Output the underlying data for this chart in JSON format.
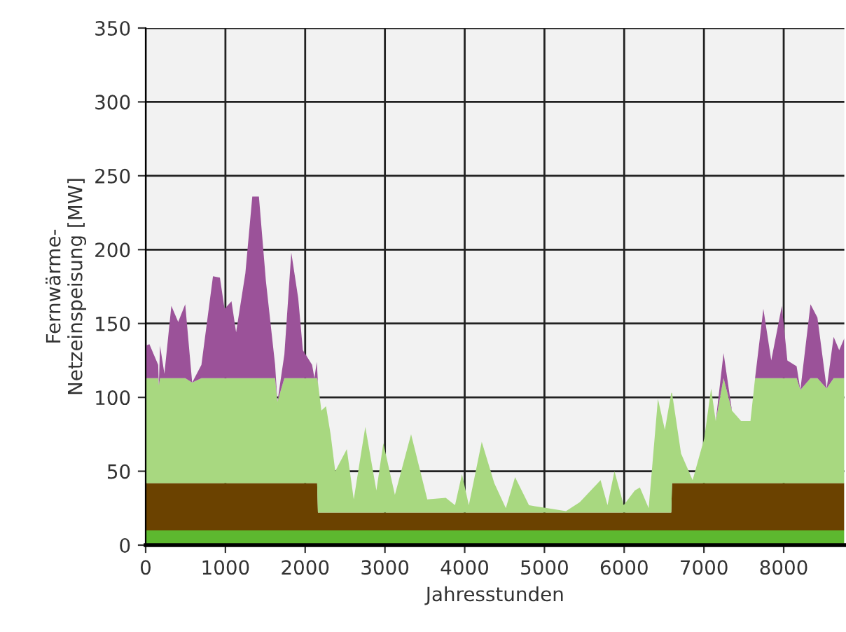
{
  "chart_data": {
    "type": "area",
    "stacked": true,
    "xlabel": "Jahresstunden",
    "ylabel": "Fernwärme-\nNetzeinspeisung [MW]",
    "x": [
      0,
      47,
      157,
      165,
      180,
      235,
      322,
      408,
      496,
      583,
      699,
      844,
      931,
      989,
      1076,
      1134,
      1250,
      1337,
      1420,
      1507,
      1623,
      1652,
      1739,
      1826,
      1913,
      1971,
      2087,
      2116,
      2145,
      2150,
      2160,
      2203,
      2261,
      2319,
      2377,
      2522,
      2609,
      2754,
      2841,
      2893,
      2980,
      3125,
      3328,
      3531,
      3763,
      3879,
      3966,
      4052,
      4214,
      4371,
      4516,
      4632,
      4806,
      5038,
      5270,
      5443,
      5704,
      5791,
      5878,
      5994,
      6133,
      6197,
      6307,
      6423,
      6510,
      6590,
      6600,
      6713,
      6858,
      7003,
      7090,
      7148,
      7246,
      7351,
      7467,
      7583,
      7641,
      7745,
      7844,
      7977,
      8046,
      8162,
      8209,
      8336,
      8423,
      8539,
      8626,
      8696,
      8760
    ],
    "series": [
      {
        "color": "#5db82f",
        "values": [
          10,
          10,
          10,
          10,
          10,
          10,
          10,
          10,
          10,
          10,
          10,
          10,
          10,
          10,
          10,
          10,
          10,
          10,
          10,
          10,
          10,
          10,
          10,
          10,
          10,
          10,
          10,
          10,
          10,
          10,
          10,
          10,
          10,
          10,
          10,
          10,
          10,
          10,
          10,
          10,
          10,
          10,
          10,
          10,
          10,
          10,
          10,
          10,
          10,
          10,
          10,
          10,
          10,
          10,
          10,
          10,
          10,
          10,
          10,
          10,
          10,
          10,
          10,
          10,
          10,
          10,
          10,
          10,
          10,
          10,
          10,
          10,
          10,
          10,
          10,
          10,
          10,
          10,
          10,
          10,
          10,
          10,
          10,
          10,
          10,
          10,
          10,
          10,
          10
        ]
      },
      {
        "color": "#6b4200",
        "values": [
          32,
          32,
          32,
          32,
          32,
          32,
          32,
          32,
          32,
          32,
          32,
          32,
          32,
          32,
          32,
          32,
          32,
          32,
          32,
          32,
          32,
          32,
          32,
          32,
          32,
          32,
          32,
          32,
          32,
          32,
          12,
          12,
          12,
          12,
          12,
          12,
          12,
          12,
          12,
          12,
          12,
          12,
          12,
          12,
          12,
          12,
          12,
          12,
          12,
          12,
          12,
          12,
          12,
          12,
          12,
          12,
          12,
          12,
          12,
          12,
          12,
          12,
          12,
          12,
          12,
          12,
          32,
          32,
          32,
          32,
          32,
          32,
          32,
          32,
          32,
          32,
          32,
          32,
          32,
          32,
          32,
          32,
          32,
          32,
          32,
          32,
          32,
          32,
          32
        ]
      },
      {
        "color": "#a8d880",
        "values": [
          71,
          71,
          71,
          66,
          71,
          71,
          71,
          71,
          71,
          68,
          71,
          71,
          71,
          71,
          71,
          71,
          71,
          71,
          71,
          71,
          71,
          55,
          71,
          71,
          71,
          71,
          71,
          71,
          71,
          71,
          88,
          69,
          72,
          53,
          28,
          43,
          9,
          58,
          31,
          15,
          47,
          12,
          53,
          9,
          10,
          5,
          26,
          5,
          48,
          20,
          3,
          24,
          5,
          3,
          1,
          7,
          22,
          5,
          28,
          5,
          15,
          17,
          3,
          77,
          56,
          81,
          61,
          20,
          2,
          30,
          64,
          42,
          71,
          49,
          42,
          42,
          71,
          71,
          71,
          71,
          71,
          71,
          63,
          71,
          71,
          64,
          71,
          71,
          71
        ]
      },
      {
        "color": "#9b5299",
        "values": [
          22,
          23,
          9,
          0,
          22,
          3,
          49,
          38,
          50,
          0,
          9,
          69,
          68,
          47,
          52,
          31,
          71,
          123,
          123,
          66,
          9,
          0,
          16,
          85,
          54,
          19,
          9,
          0,
          11,
          7,
          0,
          0,
          0,
          0,
          0,
          0,
          0,
          0,
          0,
          0,
          0,
          0,
          0,
          0,
          0,
          0,
          0,
          0,
          0,
          0,
          0,
          0,
          0,
          0,
          0,
          0,
          0,
          0,
          0,
          0,
          0,
          0,
          0,
          0,
          0,
          0,
          0,
          0,
          0,
          0,
          0,
          0,
          17,
          0,
          0,
          0,
          0,
          47,
          12,
          49,
          12,
          8,
          0,
          50,
          41,
          0,
          28,
          19,
          27
        ]
      }
    ],
    "xlim": [
      0,
      8760
    ],
    "xticks": [
      0,
      1000,
      2000,
      3000,
      4000,
      5000,
      6000,
      7000,
      8000
    ],
    "ylim": [
      0,
      350
    ],
    "yticks": [
      0,
      50,
      100,
      150,
      200,
      250,
      300,
      350
    ],
    "grid": true,
    "legend": false
  }
}
